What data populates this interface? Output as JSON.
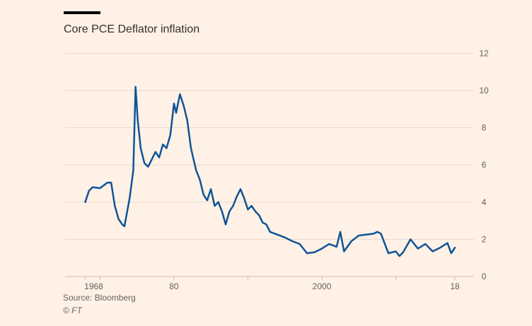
{
  "chart_data": {
    "type": "line",
    "title": "Core PCE Deflator inflation",
    "xlabel": "",
    "ylabel": "",
    "ylim": [
      0,
      12
    ],
    "xlim": [
      1968,
      2018
    ],
    "yticks": [
      0,
      2,
      4,
      6,
      8,
      10,
      12
    ],
    "xtick_labels": [
      {
        "year": 1968,
        "label": "1968"
      },
      {
        "year": 1980,
        "label": "80"
      },
      {
        "year": 2000,
        "label": "2000"
      },
      {
        "year": 2018,
        "label": "18"
      }
    ],
    "xtick_marks": [
      1968,
      1970,
      1980,
      1990,
      2000,
      2010,
      2018
    ],
    "grid": true,
    "color": "#0f5499",
    "series": [
      {
        "name": "Core PCE Deflator inflation",
        "x": [
          1968,
          1968.5,
          1969,
          1970,
          1971,
          1971.5,
          1972,
          1972.5,
          1973,
          1973.3,
          1974,
          1974.5,
          1974.8,
          1975.1,
          1975.5,
          1976,
          1976.5,
          1977,
          1977.5,
          1978,
          1978.5,
          1979,
          1979.5,
          1980,
          1980.3,
          1980.8,
          1981.3,
          1981.8,
          1982.3,
          1983,
          1983.5,
          1984,
          1984.5,
          1985,
          1985.5,
          1986,
          1986.5,
          1987,
          1987.5,
          1988,
          1988.5,
          1989,
          1989.5,
          1990,
          1990.5,
          1991,
          1991.5,
          1992,
          1992.5,
          1993,
          1994,
          1995,
          1996,
          1997,
          1998,
          1999,
          2000,
          2001,
          2002,
          2002.5,
          2003,
          2004,
          2005,
          2006,
          2007,
          2007.5,
          2008,
          2009,
          2010,
          2010.5,
          2011,
          2012,
          2013,
          2014,
          2015,
          2016,
          2017,
          2017.5,
          2018
        ],
        "y": [
          4.0,
          4.6,
          4.8,
          4.75,
          5.05,
          5.05,
          3.8,
          3.1,
          2.8,
          2.7,
          4.2,
          5.7,
          10.2,
          8.4,
          6.9,
          6.1,
          5.9,
          6.3,
          6.7,
          6.4,
          7.1,
          6.9,
          7.6,
          9.3,
          8.8,
          9.8,
          9.2,
          8.4,
          6.9,
          5.7,
          5.2,
          4.4,
          4.1,
          4.7,
          3.8,
          4.0,
          3.5,
          2.8,
          3.5,
          3.8,
          4.3,
          4.7,
          4.2,
          3.6,
          3.8,
          3.5,
          3.3,
          2.9,
          2.8,
          2.4,
          2.25,
          2.1,
          1.9,
          1.75,
          1.25,
          1.3,
          1.5,
          1.75,
          1.6,
          2.4,
          1.35,
          1.9,
          2.2,
          2.25,
          2.3,
          2.4,
          2.3,
          1.25,
          1.35,
          1.1,
          1.3,
          2.0,
          1.5,
          1.75,
          1.35,
          1.55,
          1.8,
          1.25,
          1.55
        ]
      }
    ]
  },
  "footer": {
    "source": "Source: Bloomberg",
    "credit": "© FT"
  }
}
